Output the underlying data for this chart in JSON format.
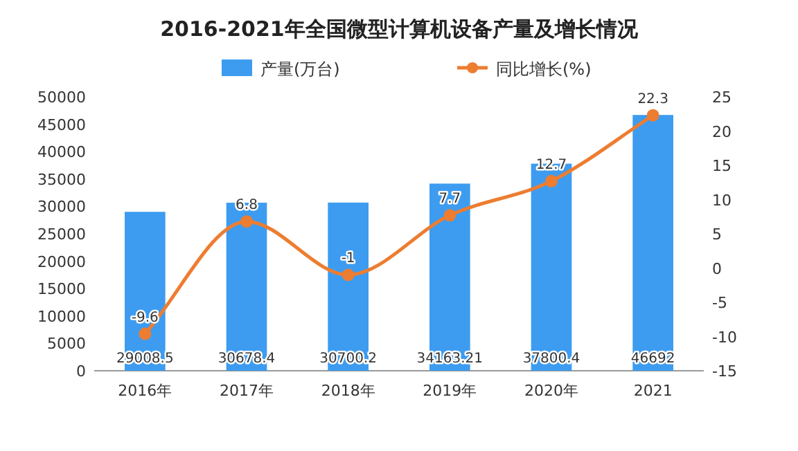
{
  "chart_data": {
    "type": "bar",
    "title": "2016-2021年全国微型计算机设备产量及增长情况",
    "categories": [
      "2016年",
      "2017年",
      "2018年",
      "2019年",
      "2020年",
      "2021"
    ],
    "series": [
      {
        "name": "产量(万台)",
        "color": "#3d9cf0",
        "values": [
          29008.5,
          30678.4,
          30700.2,
          34163.21,
          37800.4,
          46692
        ]
      },
      {
        "name": "同比增长(%)",
        "type": "line",
        "axis": "y2",
        "color": "#ed7d31",
        "values": [
          -9.6,
          6.8,
          -1,
          7.7,
          12.7,
          22.3
        ]
      }
    ],
    "ylim": [
      0,
      50000
    ],
    "yticks": [
      0,
      5000,
      10000,
      15000,
      20000,
      25000,
      30000,
      35000,
      40000,
      45000,
      50000
    ],
    "y2lim": [
      -15,
      25
    ],
    "y2ticks": [
      -15,
      -10,
      -5,
      0,
      5,
      10,
      15,
      20,
      25
    ],
    "data_labels": true,
    "legend": "top",
    "marker": "circle",
    "line_style": "solid",
    "grid": false
  }
}
